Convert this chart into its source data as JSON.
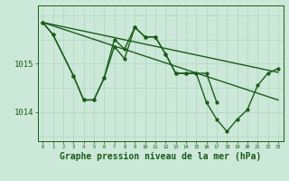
{
  "bg_color": "#cce8d8",
  "grid_color": "#b0d4c0",
  "line_color": "#1a5c1a",
  "xlabel": "Graphe pression niveau de la mer (hPa)",
  "xlabel_fontsize": 7.0,
  "yticks": [
    1014,
    1015
  ],
  "xlim": [
    -0.5,
    23.5
  ],
  "ylim": [
    1013.4,
    1016.2
  ],
  "x_all": [
    0,
    1,
    2,
    3,
    4,
    5,
    6,
    7,
    8,
    9,
    10,
    11,
    12,
    13,
    14,
    15,
    16,
    17,
    18,
    19,
    20,
    21,
    22,
    23
  ],
  "series1_x": [
    0,
    1,
    3,
    4,
    5,
    6,
    7,
    8,
    9,
    10,
    11,
    12,
    13,
    14,
    15,
    16,
    17
  ],
  "series1_y": [
    1015.85,
    1015.6,
    1014.75,
    1014.25,
    1014.25,
    1014.7,
    1015.5,
    1015.3,
    1015.75,
    1015.55,
    1015.55,
    1015.2,
    1014.8,
    1014.8,
    1014.8,
    1014.8,
    1014.2
  ],
  "series2_x": [
    0,
    1,
    3,
    4,
    5,
    6,
    7,
    8,
    9,
    10,
    11,
    12,
    13,
    14,
    15,
    16,
    17,
    18,
    19,
    20,
    21,
    22,
    23
  ],
  "series2_y": [
    1015.85,
    1015.6,
    1014.75,
    1014.25,
    1014.25,
    1014.7,
    1015.35,
    1015.1,
    1015.75,
    1015.55,
    1015.55,
    1015.2,
    1014.8,
    1014.8,
    1014.8,
    1014.2,
    1013.85,
    1013.6,
    1013.85,
    1014.05,
    1014.55,
    1014.8,
    1014.9
  ],
  "trend1_x": [
    0,
    23
  ],
  "trend1_y": [
    1015.85,
    1014.82
  ],
  "trend2_x": [
    0,
    23
  ],
  "trend2_y": [
    1015.85,
    1014.25
  ]
}
